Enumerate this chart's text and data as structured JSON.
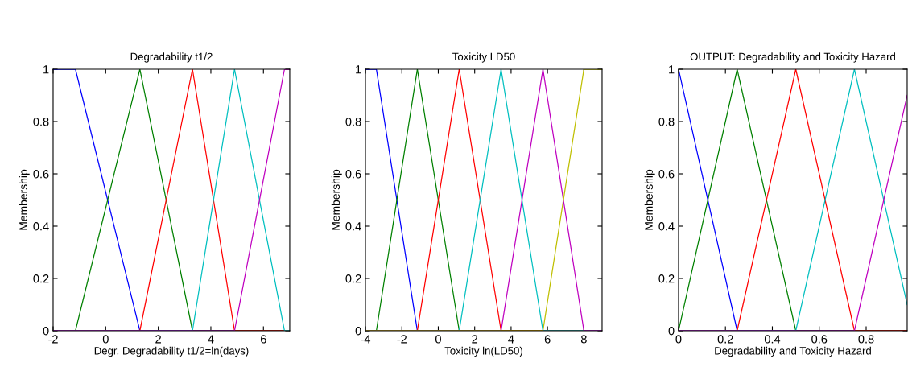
{
  "chart_data": [
    {
      "type": "line",
      "title": "Degradability t1/2",
      "xlabel": "Degr. Degradability t1/2=ln(days)",
      "ylabel": "Membership",
      "xlim": [
        -2,
        7
      ],
      "xticks": [
        -2,
        0,
        2,
        4,
        6
      ],
      "ylim": [
        0,
        1
      ],
      "yticks": [
        0,
        0.2,
        0.4,
        0.6,
        0.8,
        1
      ],
      "series": [
        {
          "color": "#0000ff",
          "x": [
            -2,
            -1.15,
            1.3,
            7
          ],
          "values": [
            1,
            1,
            0,
            0
          ]
        },
        {
          "color": "#008000",
          "x": [
            -2,
            -1.15,
            1.3,
            3.3,
            7
          ],
          "values": [
            0,
            0,
            1,
            0,
            0
          ]
        },
        {
          "color": "#ff0000",
          "x": [
            -2,
            1.3,
            3.3,
            4.9,
            7
          ],
          "values": [
            0,
            0,
            1,
            0,
            0
          ]
        },
        {
          "color": "#00bfbf",
          "x": [
            -2,
            3.3,
            4.9,
            6.8,
            7
          ],
          "values": [
            0,
            0,
            1,
            0,
            0
          ]
        },
        {
          "color": "#bf00bf",
          "x": [
            -2,
            4.9,
            6.8,
            7
          ],
          "values": [
            0,
            0,
            1,
            1
          ]
        }
      ]
    },
    {
      "type": "line",
      "title": "Toxicity LD50",
      "xlabel": "Toxicity ln(LD50)",
      "ylabel": "Membership",
      "xlim": [
        -4,
        9
      ],
      "xticks": [
        -4,
        -2,
        0,
        2,
        4,
        6,
        8
      ],
      "ylim": [
        0,
        1
      ],
      "yticks": [
        0,
        0.2,
        0.4,
        0.6,
        0.8,
        1
      ],
      "series": [
        {
          "color": "#0000ff",
          "x": [
            -4,
            -3.4,
            -1.15,
            9
          ],
          "values": [
            1,
            1,
            0,
            0
          ]
        },
        {
          "color": "#008000",
          "x": [
            -4,
            -3.4,
            -1.15,
            1.15,
            9
          ],
          "values": [
            0,
            0,
            1,
            0,
            0
          ]
        },
        {
          "color": "#ff0000",
          "x": [
            -4,
            -1.15,
            1.15,
            3.45,
            9
          ],
          "values": [
            0,
            0,
            1,
            0,
            0
          ]
        },
        {
          "color": "#00bfbf",
          "x": [
            -4,
            1.15,
            3.45,
            5.75,
            9
          ],
          "values": [
            0,
            0,
            1,
            0,
            0
          ]
        },
        {
          "color": "#bf00bf",
          "x": [
            -4,
            3.45,
            5.75,
            8,
            9
          ],
          "values": [
            0,
            0,
            1,
            0,
            0
          ]
        },
        {
          "color": "#bfbf00",
          "x": [
            -4,
            5.75,
            8,
            9
          ],
          "values": [
            0,
            0,
            1,
            1
          ]
        }
      ]
    },
    {
      "type": "line",
      "title": "OUTPUT: Degradability and Toxicity Hazard",
      "xlabel": "Degradability and Toxicity Hazard",
      "ylabel": "Membership",
      "xlim": [
        0,
        0.975
      ],
      "xticks": [
        0,
        0.2,
        0.4,
        0.6,
        0.8
      ],
      "ylim": [
        0,
        1
      ],
      "yticks": [
        0,
        0.2,
        0.4,
        0.6,
        0.8,
        1
      ],
      "series": [
        {
          "color": "#0000ff",
          "x": [
            0,
            0.25,
            0.975
          ],
          "values": [
            1,
            0,
            0
          ]
        },
        {
          "color": "#008000",
          "x": [
            0,
            0.25,
            0.5,
            0.975
          ],
          "values": [
            0,
            1,
            0,
            0
          ]
        },
        {
          "color": "#ff0000",
          "x": [
            0,
            0.25,
            0.5,
            0.75,
            0.975
          ],
          "values": [
            0,
            0,
            1,
            0,
            0
          ]
        },
        {
          "color": "#00bfbf",
          "x": [
            0,
            0.5,
            0.75,
            0.975
          ],
          "values": [
            0,
            0,
            1,
            0.1
          ]
        },
        {
          "color": "#bf00bf",
          "x": [
            0,
            0.75,
            0.975
          ],
          "values": [
            0,
            0,
            0.9
          ]
        }
      ]
    }
  ]
}
